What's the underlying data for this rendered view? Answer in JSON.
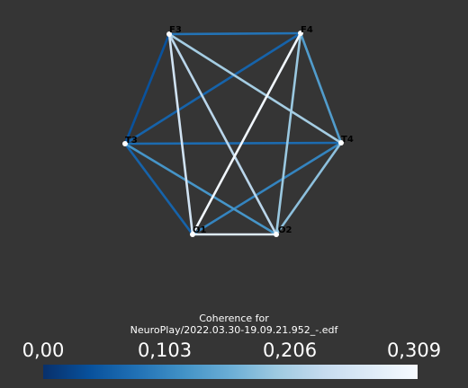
{
  "nodes": [
    {
      "id": "F3",
      "label": "F3"
    },
    {
      "id": "F4",
      "label": "F4"
    },
    {
      "id": "T3",
      "label": "T3"
    },
    {
      "id": "T4",
      "label": "T4"
    },
    {
      "id": "O1",
      "label": "O1"
    },
    {
      "id": "O2",
      "label": "O2"
    }
  ],
  "edges": [
    {
      "source": "F3",
      "target": "F4",
      "value": 0.08
    },
    {
      "source": "F3",
      "target": "T3",
      "value": 0.04
    },
    {
      "source": "F3",
      "target": "T4",
      "value": 0.2
    },
    {
      "source": "F3",
      "target": "O1",
      "value": 0.25
    },
    {
      "source": "F3",
      "target": "O2",
      "value": 0.22
    },
    {
      "source": "F4",
      "target": "T3",
      "value": 0.06
    },
    {
      "source": "F4",
      "target": "T4",
      "value": 0.13
    },
    {
      "source": "F4",
      "target": "O1",
      "value": 0.3
    },
    {
      "source": "F4",
      "target": "O2",
      "value": 0.19
    },
    {
      "source": "T3",
      "target": "T4",
      "value": 0.07
    },
    {
      "source": "T3",
      "target": "O1",
      "value": 0.06
    },
    {
      "source": "T3",
      "target": "O2",
      "value": 0.12
    },
    {
      "source": "T4",
      "target": "O1",
      "value": 0.1
    },
    {
      "source": "T4",
      "target": "O2",
      "value": 0.18
    },
    {
      "source": "O1",
      "target": "O2",
      "value": 0.27
    }
  ],
  "colorbar": {
    "title_line1": "Coherence for",
    "title_line2": "NeuroPlay/2022.03.30-19.09.21.952_-.edf",
    "ticks": [
      "0,00",
      "0,103",
      "0,206",
      "0,309"
    ],
    "min": 0,
    "max": 0.309,
    "colormap": [
      "#08306b",
      "#08519c",
      "#2171b5",
      "#4292c6",
      "#6baed6",
      "#9ecae1",
      "#c6dbef",
      "#deebf7",
      "#f7fbff"
    ]
  },
  "colors": {
    "background": "#353535",
    "node": "#ffffff",
    "text": "#ffffff"
  }
}
